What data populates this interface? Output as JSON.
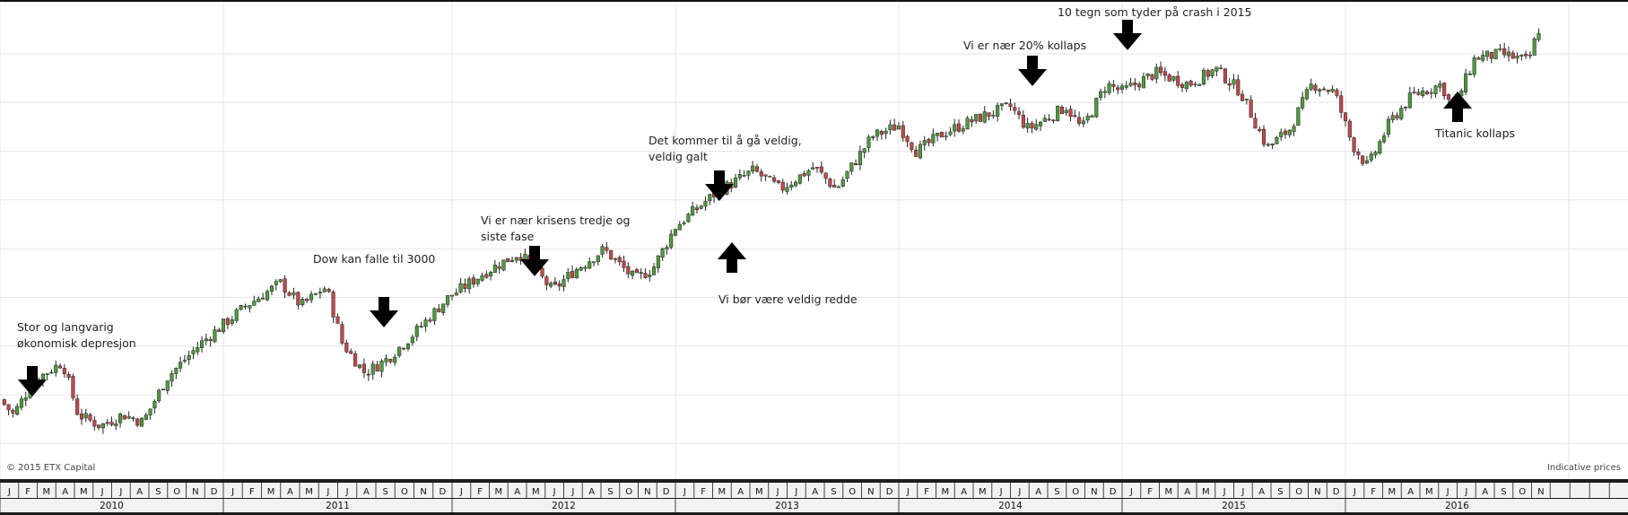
{
  "chart_data": {
    "type": "candlestick",
    "title": "",
    "grid": true,
    "colors": {
      "up": "#4e9a3f",
      "down": "#c0494b",
      "wick": "#222222",
      "grid": "#e6e6e6",
      "axis_band": "#1c1c1c"
    },
    "x_months": [
      "J",
      "F",
      "M",
      "A",
      "M",
      "J",
      "J",
      "A",
      "S",
      "O",
      "N",
      "D"
    ],
    "x_years": [
      "2010",
      "2011",
      "2012",
      "2013",
      "2014",
      "2015",
      "2016"
    ],
    "x_range": [
      "2010-01",
      "2016-12"
    ],
    "close_path": [
      {
        "t": 2010.0,
        "v": 14
      },
      {
        "t": 2010.06,
        "v": 10
      },
      {
        "t": 2010.15,
        "v": 19
      },
      {
        "t": 2010.28,
        "v": 24
      },
      {
        "t": 2010.35,
        "v": 10
      },
      {
        "t": 2010.45,
        "v": 7
      },
      {
        "t": 2010.55,
        "v": 10
      },
      {
        "t": 2010.64,
        "v": 8
      },
      {
        "t": 2010.75,
        "v": 20
      },
      {
        "t": 2010.9,
        "v": 29
      },
      {
        "t": 2011.1,
        "v": 39
      },
      {
        "t": 2011.25,
        "v": 45
      },
      {
        "t": 2011.34,
        "v": 39
      },
      {
        "t": 2011.45,
        "v": 44
      },
      {
        "t": 2011.52,
        "v": 29
      },
      {
        "t": 2011.62,
        "v": 21
      },
      {
        "t": 2011.72,
        "v": 25
      },
      {
        "t": 2011.84,
        "v": 32
      },
      {
        "t": 2011.98,
        "v": 41
      },
      {
        "t": 2012.15,
        "v": 48
      },
      {
        "t": 2012.3,
        "v": 53
      },
      {
        "t": 2012.38,
        "v": 48
      },
      {
        "t": 2012.45,
        "v": 43
      },
      {
        "t": 2012.54,
        "v": 48
      },
      {
        "t": 2012.68,
        "v": 54
      },
      {
        "t": 2012.82,
        "v": 46
      },
      {
        "t": 2012.9,
        "v": 49
      },
      {
        "t": 2013.0,
        "v": 60
      },
      {
        "t": 2013.18,
        "v": 69
      },
      {
        "t": 2013.35,
        "v": 75
      },
      {
        "t": 2013.47,
        "v": 70
      },
      {
        "t": 2013.62,
        "v": 76
      },
      {
        "t": 2013.72,
        "v": 70
      },
      {
        "t": 2013.88,
        "v": 84
      },
      {
        "t": 2014.0,
        "v": 87
      },
      {
        "t": 2014.08,
        "v": 80
      },
      {
        "t": 2014.2,
        "v": 85
      },
      {
        "t": 2014.4,
        "v": 90
      },
      {
        "t": 2014.5,
        "v": 92
      },
      {
        "t": 2014.58,
        "v": 86
      },
      {
        "t": 2014.75,
        "v": 92
      },
      {
        "t": 2014.82,
        "v": 86
      },
      {
        "t": 2014.93,
        "v": 98
      },
      {
        "t": 2015.0,
        "v": 96
      },
      {
        "t": 2015.15,
        "v": 101
      },
      {
        "t": 2015.3,
        "v": 98
      },
      {
        "t": 2015.42,
        "v": 102
      },
      {
        "t": 2015.53,
        "v": 96
      },
      {
        "t": 2015.65,
        "v": 81
      },
      {
        "t": 2015.75,
        "v": 86
      },
      {
        "t": 2015.85,
        "v": 98
      },
      {
        "t": 2015.95,
        "v": 96
      },
      {
        "t": 2016.03,
        "v": 82
      },
      {
        "t": 2016.1,
        "v": 76
      },
      {
        "t": 2016.2,
        "v": 88
      },
      {
        "t": 2016.3,
        "v": 95
      },
      {
        "t": 2016.43,
        "v": 98
      },
      {
        "t": 2016.48,
        "v": 91
      },
      {
        "t": 2016.58,
        "v": 105
      },
      {
        "t": 2016.7,
        "v": 106
      },
      {
        "t": 2016.82,
        "v": 104
      },
      {
        "t": 2016.86,
        "v": 112
      },
      {
        "t": 2016.88,
        "v": 114
      }
    ]
  },
  "annotations": [
    {
      "text": "Stor og langvarig\nøkonomisk depresjon",
      "arrow": "down"
    },
    {
      "text": "Dow kan falle til 3000",
      "arrow": "down"
    },
    {
      "text": "Vi er nær krisens tredje og\nsiste fase",
      "arrow": "down"
    },
    {
      "text": "Det kommer til å gå veldig,\nveldig galt",
      "arrow": "down"
    },
    {
      "text": "Vi bør være veldig redde",
      "arrow": "up"
    },
    {
      "text": "Vi er nær 20% kollaps",
      "arrow": "down"
    },
    {
      "text": "10 tegn som tyder på crash i 2015",
      "arrow": "down"
    },
    {
      "text": "Titanic kollaps",
      "arrow": "up"
    }
  ],
  "copyright": "© 2015 ETX Capital",
  "indicative": "Indicative prices"
}
